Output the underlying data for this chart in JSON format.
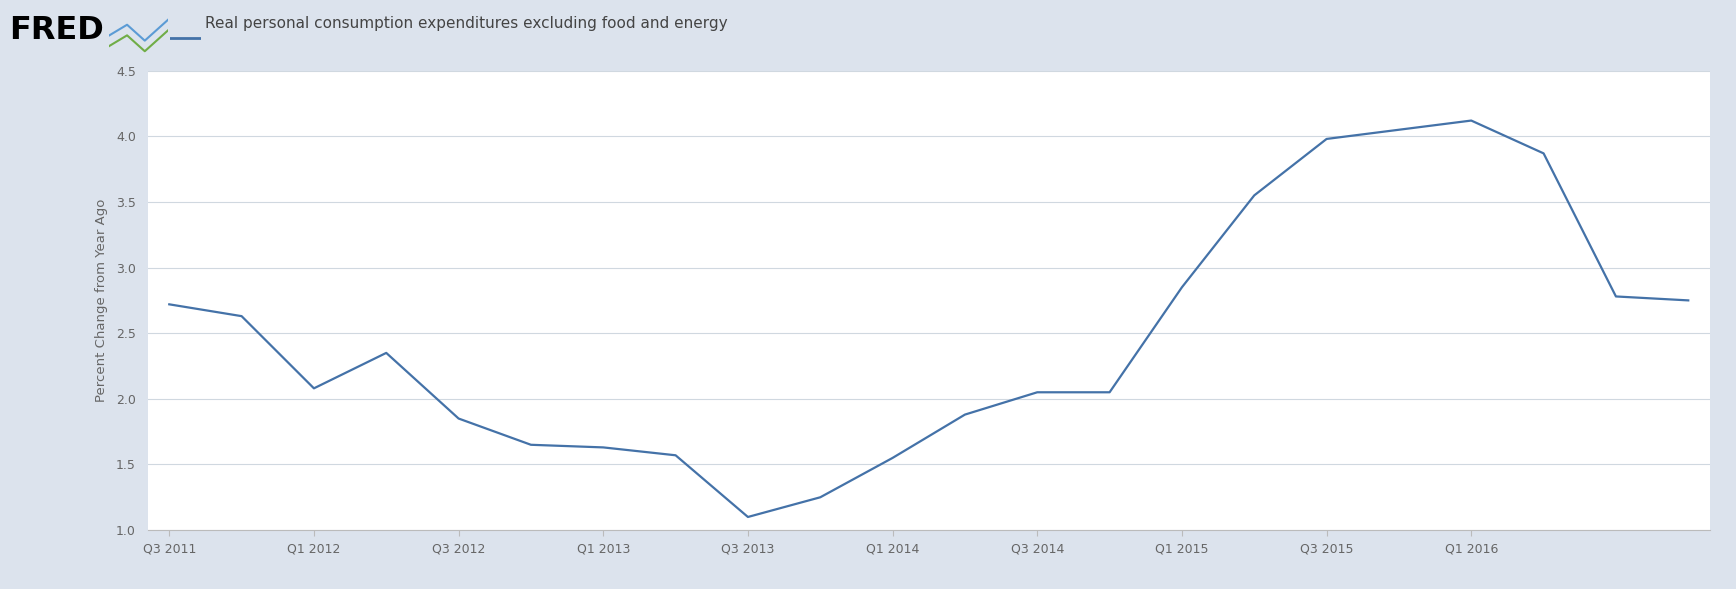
{
  "title": "Real personal consumption expenditures excluding food and energy",
  "ylabel": "Percent Change from Year Ago",
  "line_color": "#4472a8",
  "background_outer": "#dce3ed",
  "background_inner": "#ffffff",
  "ylim": [
    1.0,
    4.5
  ],
  "yticks": [
    1.0,
    1.5,
    2.0,
    2.5,
    3.0,
    3.5,
    4.0,
    4.5
  ],
  "xtick_labels": [
    "Q3 2011",
    "Q1 2012",
    "Q3 2012",
    "Q1 2013",
    "Q3 2013",
    "Q1 2014",
    "Q3 2014",
    "Q1 2015",
    "Q3 2015",
    "Q1 2016"
  ],
  "grid_color": "#d0d8e0",
  "tick_color": "#666666",
  "line_width": 1.6,
  "x_data": [
    0,
    1,
    2,
    3,
    4,
    5,
    6,
    7,
    8,
    9,
    10,
    11,
    12,
    13,
    14,
    15,
    16,
    17,
    18,
    19,
    20,
    21
  ],
  "y_data": [
    2.72,
    2.63,
    2.08,
    2.35,
    1.85,
    1.65,
    1.63,
    1.57,
    1.1,
    1.25,
    1.55,
    1.88,
    2.05,
    2.05,
    2.85,
    3.55,
    3.98,
    4.05,
    4.12,
    3.87,
    2.78,
    2.75
  ]
}
